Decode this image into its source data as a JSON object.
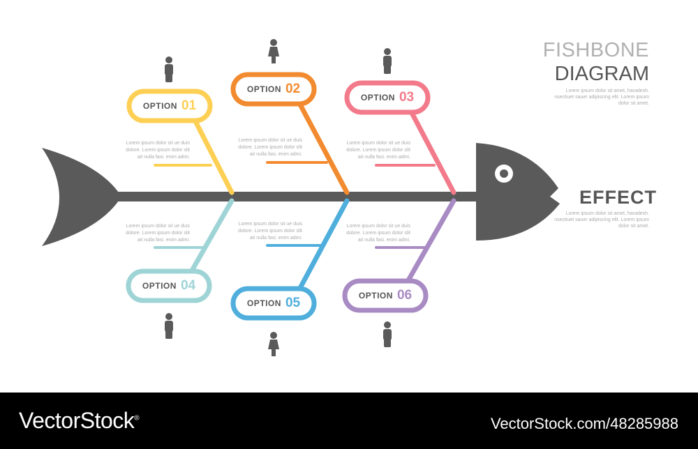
{
  "title": {
    "line1": "FISHBONE",
    "line2": "DIAGRAM",
    "description": "Lorem ipsum dolor sit amet, haradesh. nsectiuet sauer adipiscing elit. Lorem ipsum dolor sit amet."
  },
  "effect": {
    "label": "EFFECT",
    "description": "Lorem ipsum dolor sit amet, haradesh. nsectiuet sauer adipiscing elit. Lorem ipsum dolor sit amet."
  },
  "colors": {
    "fish": "#5a5a5a",
    "o1": "#FDD055",
    "o2": "#F28B30",
    "o3": "#F27A8A",
    "o4": "#9FD4D6",
    "o5": "#4FAEDC",
    "o6": "#A98BC4"
  },
  "options": [
    {
      "label": "OPTION",
      "number": "01",
      "color": "#FDD055",
      "text": "Lorem ipsum dolor sit  ue duis dolore.  Lorem ipsum dolor slit ait nulla fasi. enim admi."
    },
    {
      "label": "OPTION",
      "number": "02",
      "color": "#F28B30",
      "text": "Lorem ipsum dolor sit  ue duis dolore.  Lorem ipsum dolor slit ait nulla fasi. enim admi."
    },
    {
      "label": "OPTION",
      "number": "03",
      "color": "#F27A8A",
      "text": "Lorem ipsum dolor sit  ue duis dolore.  Lorem ipsum dolor slit ait nulla fasi. enim admi."
    },
    {
      "label": "OPTION",
      "number": "04",
      "color": "#9FD4D6",
      "text": "Lorem ipsum dolor sit  ue duis dolore.  Lorem ipsum dolor slit ait nulla fasi. enim admi."
    },
    {
      "label": "OPTION",
      "number": "05",
      "color": "#4FAEDC",
      "text": "Lorem ipsum dolor sit  ue duis dolore.  Lorem ipsum dolor slit ait nulla fasi. enim admi."
    },
    {
      "label": "OPTION",
      "number": "06",
      "color": "#A98BC4",
      "text": "Lorem ipsum dolor sit  ue duis dolore.  Lorem ipsum dolor slit ait nulla fasi. enim admi."
    }
  ],
  "icons": {
    "person": "person-icon",
    "fish_head": "fish-head-icon",
    "fish_tail": "fish-tail-icon"
  },
  "footer": {
    "brand": "VectorStock",
    "registered": "®",
    "url": "VectorStock.com/48285988"
  }
}
